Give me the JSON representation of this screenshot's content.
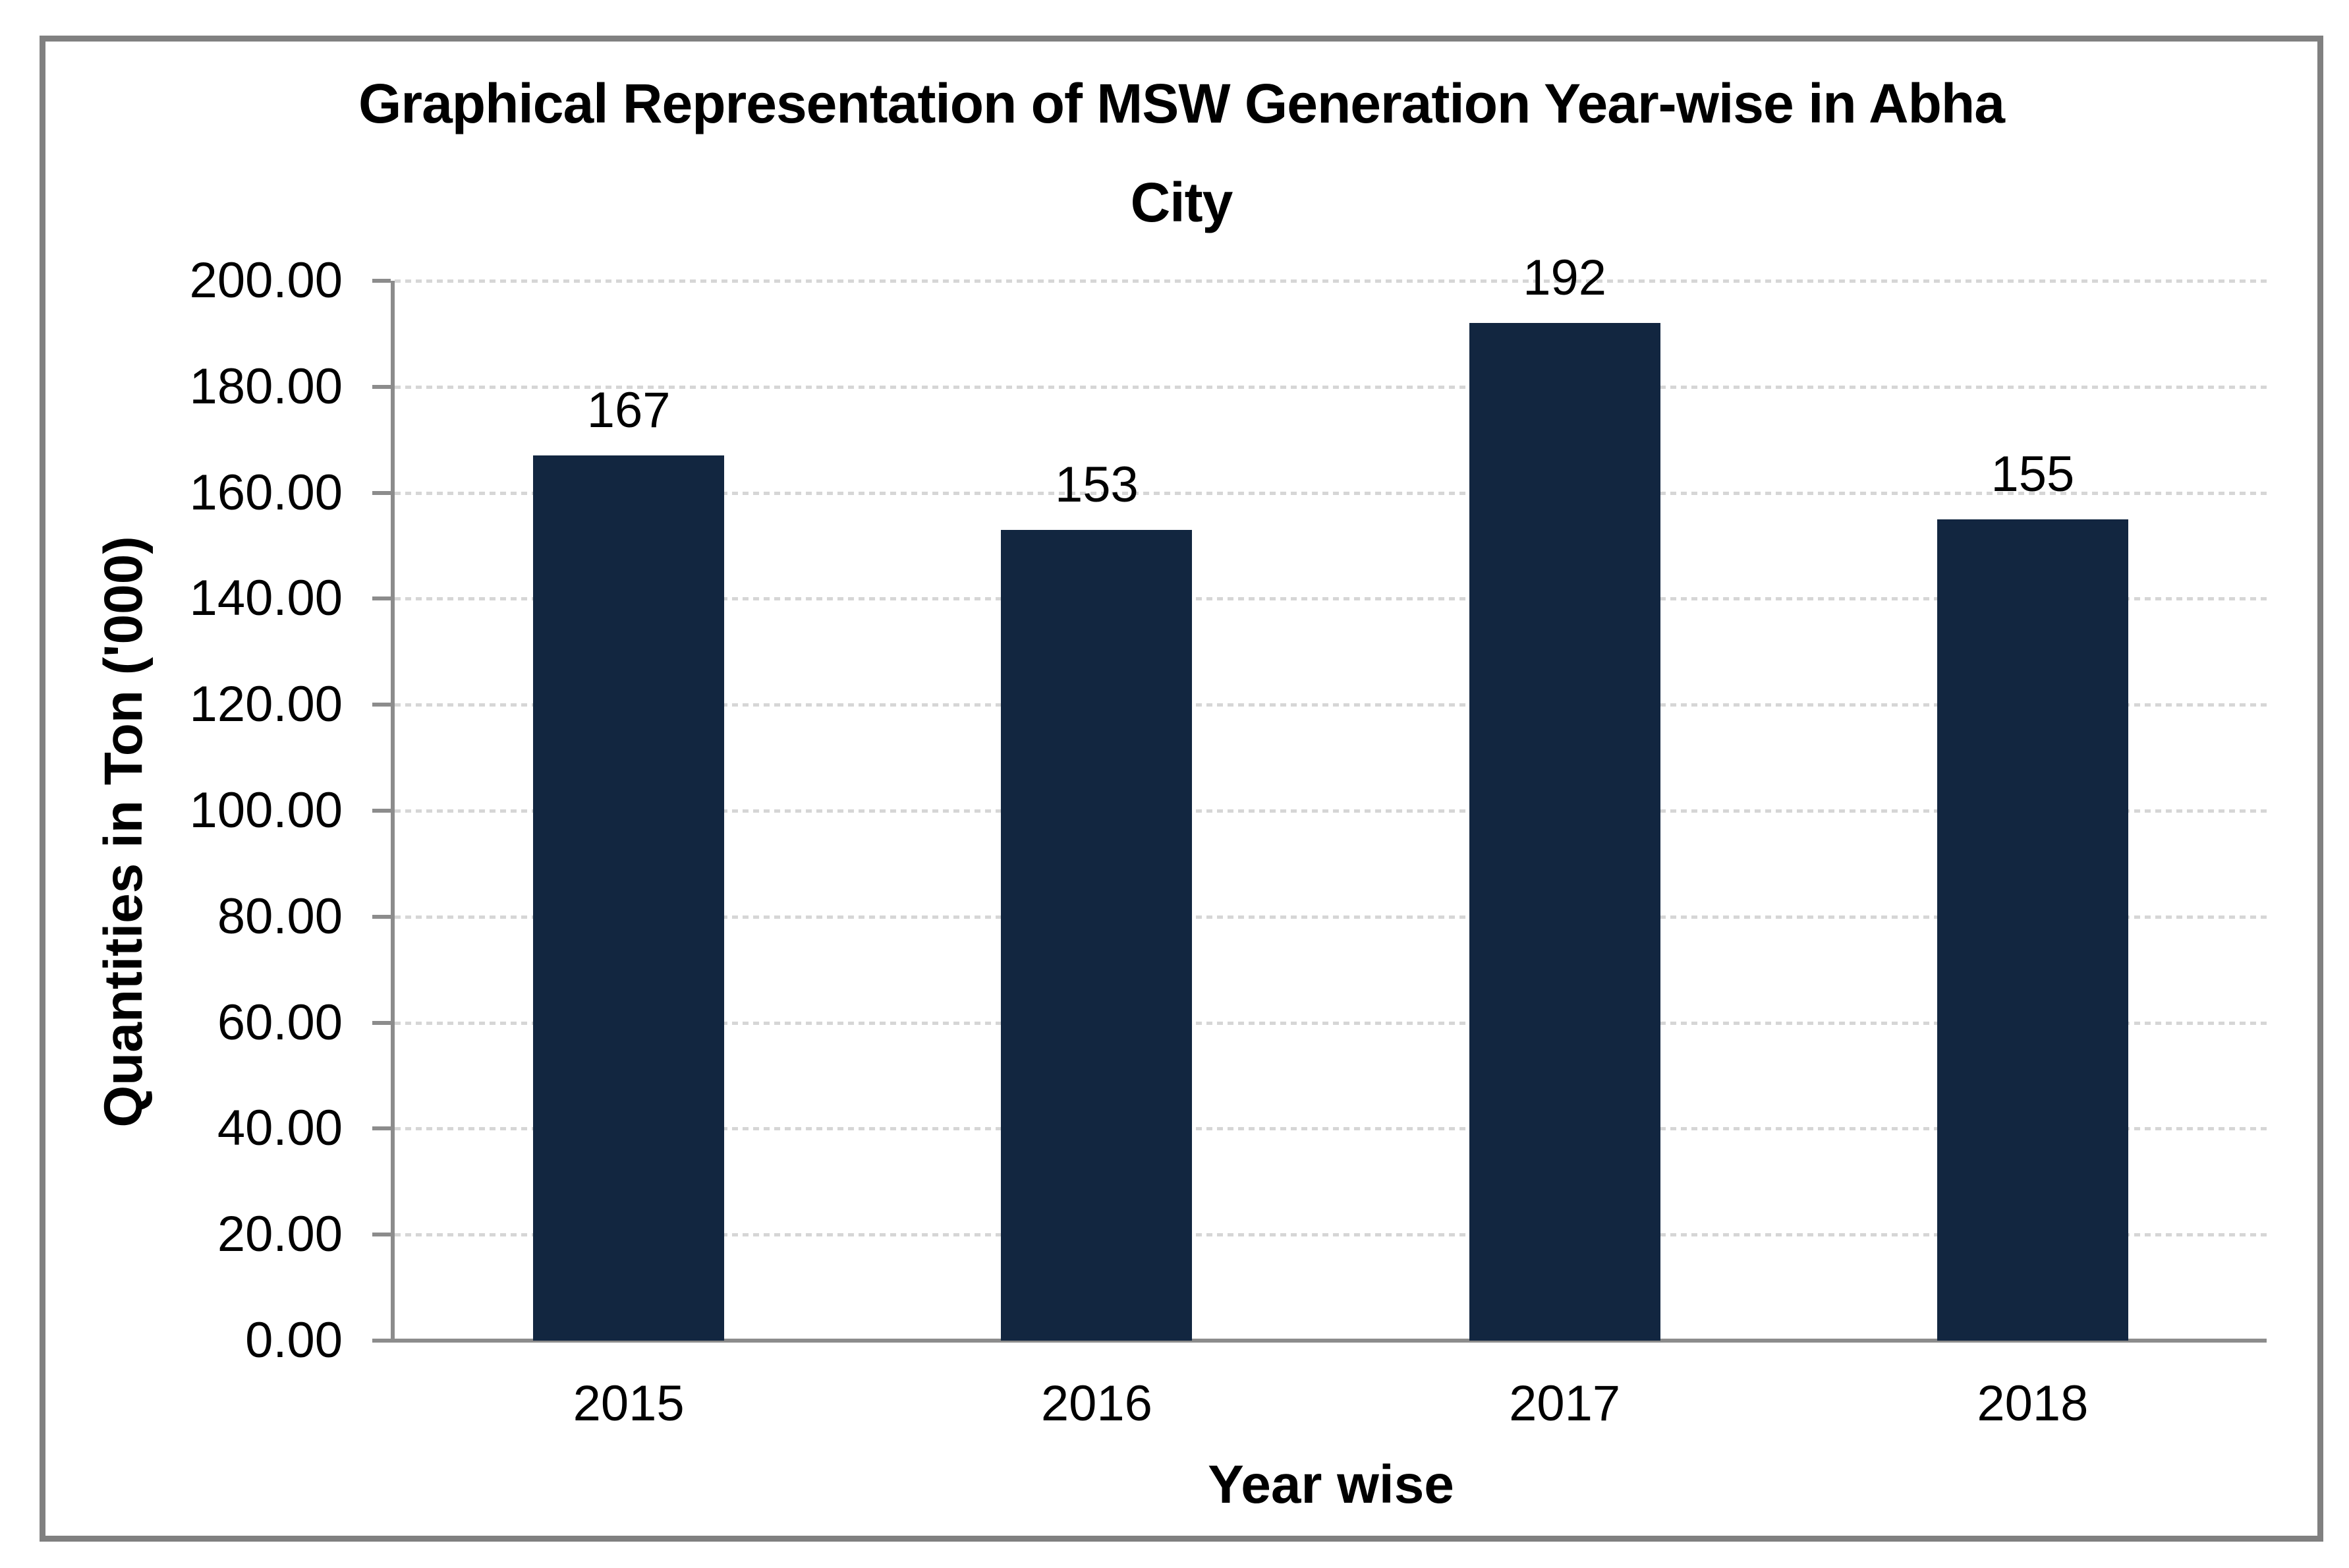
{
  "chart_data": {
    "type": "bar",
    "title": "Graphical Representation of MSW Generation Year-wise in Abha City",
    "title_lines": [
      "Graphical Representation of MSW Generation Year-wise in Abha",
      "City"
    ],
    "categories": [
      "2015",
      "2016",
      "2017",
      "2018"
    ],
    "values": [
      167,
      153,
      192,
      155
    ],
    "data_labels": [
      "167",
      "153",
      "192",
      "155"
    ],
    "xlabel": "Year wise",
    "ylabel": "Quantities in Ton ('000)",
    "ylim": [
      0,
      200
    ],
    "ytick_step": 20,
    "ytick_labels": [
      "200.00",
      "180.00",
      "160.00",
      "140.00",
      "120.00",
      "100.00",
      "80.00",
      "60.00",
      "40.00",
      "20.00",
      "0.00"
    ],
    "grid": "horizontal-dotted",
    "legend_position": "none",
    "bar_color": "#122640",
    "gridline_color": "#d6d6d6",
    "axis_color": "#8c8c8c",
    "frame_border_color": "#808080",
    "text_color": "#000000"
  }
}
